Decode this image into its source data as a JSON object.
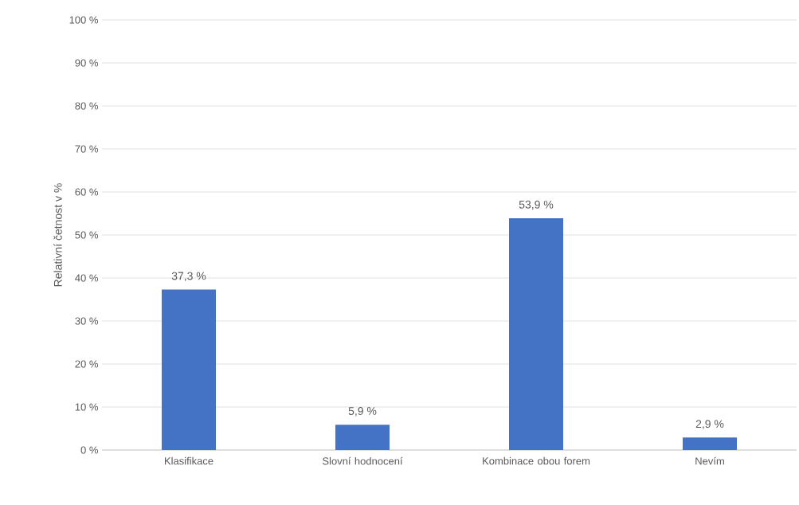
{
  "chart_data": {
    "type": "bar",
    "ylabel": "Relativní četnost v %",
    "categories": [
      "Klasifikace",
      "Slovní hodnocení",
      "Kombinace obou forem",
      "Nevím"
    ],
    "values": [
      37.3,
      5.9,
      53.9,
      2.9
    ],
    "value_labels": [
      "37,3 %",
      "5,9 %",
      "53,9 %",
      "2,9 %"
    ],
    "color": "#4472c4",
    "ylim": [
      0,
      100
    ],
    "yticks": [
      {
        "value": 0,
        "label": "0 %"
      },
      {
        "value": 10,
        "label": "10 %"
      },
      {
        "value": 20,
        "label": "20 %"
      },
      {
        "value": 30,
        "label": "30 %"
      },
      {
        "value": 40,
        "label": "40 %"
      },
      {
        "value": 50,
        "label": "50 %"
      },
      {
        "value": 60,
        "label": "60 %"
      },
      {
        "value": 70,
        "label": "70 %"
      },
      {
        "value": 80,
        "label": "80 %"
      },
      {
        "value": 90,
        "label": "90 %"
      },
      {
        "value": 100,
        "label": "100 %"
      }
    ],
    "grid": "y"
  }
}
